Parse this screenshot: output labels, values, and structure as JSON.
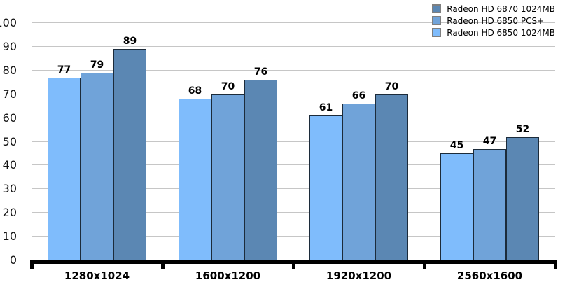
{
  "chart_data": {
    "type": "bar",
    "title": "",
    "xlabel": "",
    "ylabel": "",
    "categories": [
      "1280x1024",
      "1600x1200",
      "1920x1200",
      "2560x1600"
    ],
    "series": [
      {
        "name": "Radeon HD 6870 1024MB",
        "color": "#5b87b3",
        "values": [
          89,
          76,
          70,
          52
        ]
      },
      {
        "name": "Radeon HD 6850 PCS+",
        "color": "#70a3d9",
        "values": [
          79,
          70,
          66,
          47
        ]
      },
      {
        "name": "Radeon HD 6850 1024MB",
        "color": "#7fbcfc",
        "values": [
          77,
          68,
          61,
          45
        ]
      }
    ],
    "bar_labels_shown": true,
    "ylim": [
      0,
      100
    ],
    "y_ticks": [
      0,
      10,
      20,
      30,
      40,
      50,
      60,
      70,
      80,
      90,
      100
    ],
    "grid": "horizontal",
    "gridline_color": "#c6c6c6",
    "bar_border_color": "#1c2b3a",
    "axis_color": "#000000",
    "legend_position": "top-right",
    "legend_swatch_border_color": "#7f7f7f",
    "bar_draw_order_note": "bars drawn left-to-right in reverse series order (lightest first, darkest last)"
  }
}
